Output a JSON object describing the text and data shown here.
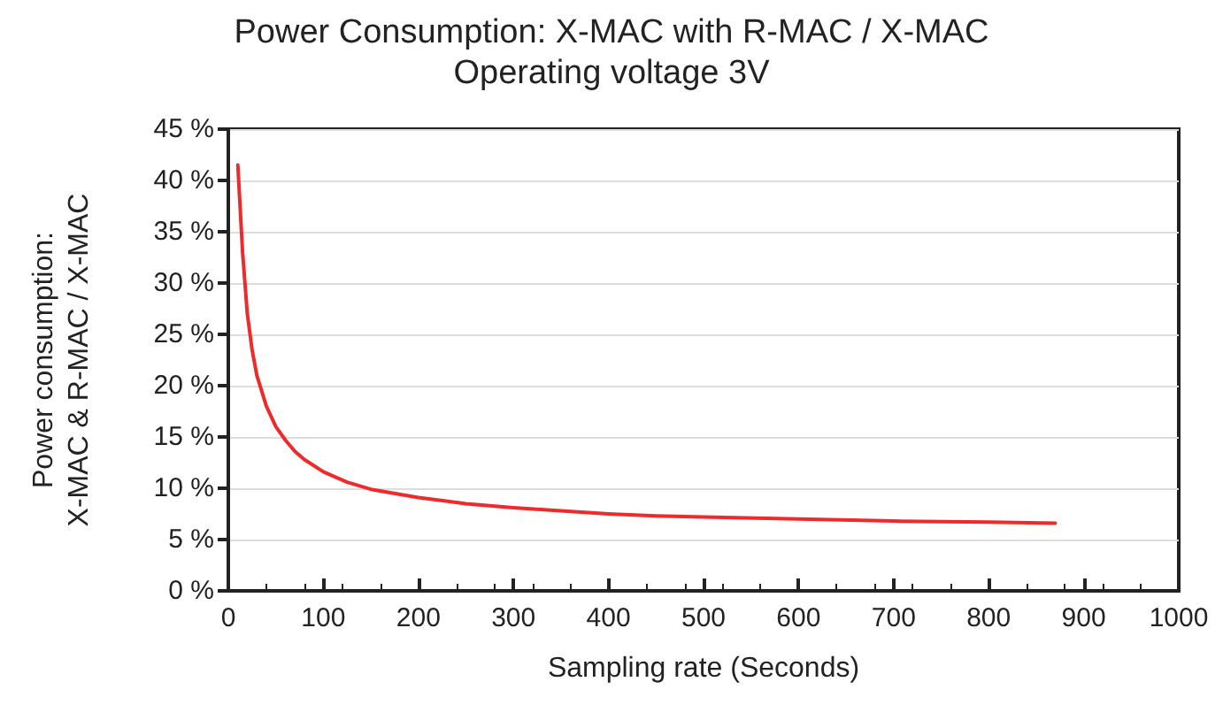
{
  "chart_data": {
    "type": "line",
    "title": "Power Consumption: X-MAC with R-MAC / X-MAC",
    "subtitle": "Operating voltage 3V",
    "xlabel": "Sampling rate (Seconds)",
    "ylabel": "Power consumption:\nX-MAC & R-MAC / X-MAC",
    "x": [
      10,
      15,
      20,
      25,
      30,
      40,
      50,
      60,
      70,
      80,
      100,
      125,
      150,
      200,
      250,
      300,
      350,
      400,
      450,
      500,
      600,
      700,
      800,
      870
    ],
    "series": [
      {
        "color": "#ee2a2a",
        "values": [
          41.5,
          33,
          27,
          23.5,
          21,
          18,
          16,
          14.7,
          13.6,
          12.8,
          11.6,
          10.6,
          9.9,
          9.1,
          8.5,
          8.1,
          7.8,
          7.5,
          7.3,
          7.2,
          7.0,
          6.8,
          6.7,
          6.6
        ]
      }
    ],
    "xlim": [
      0,
      1000
    ],
    "xticks": [
      0,
      100,
      200,
      300,
      400,
      500,
      600,
      700,
      800,
      900,
      1000
    ],
    "ylim": [
      0,
      45
    ],
    "yticks": [
      {
        "value": 0,
        "label": "0 %"
      },
      {
        "value": 5,
        "label": "5 %"
      },
      {
        "value": 10,
        "label": "10 %"
      },
      {
        "value": 15,
        "label": "15 %"
      },
      {
        "value": 20,
        "label": "20 %"
      },
      {
        "value": 25,
        "label": "25 %"
      },
      {
        "value": 30,
        "label": "30 %"
      },
      {
        "value": 35,
        "label": "35 %"
      },
      {
        "value": 40,
        "label": "40 %"
      },
      {
        "value": 45,
        "label": "45 %"
      }
    ],
    "grid": "y",
    "marker": "none",
    "line_style": "solid"
  }
}
